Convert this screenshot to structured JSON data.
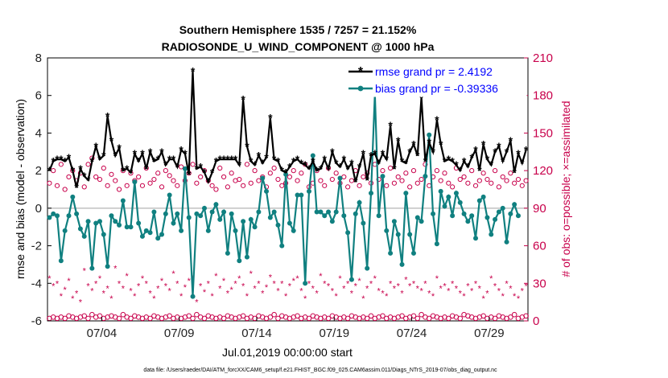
{
  "chart_data": {
    "type": "line",
    "title": "Southern Hemisphere 1535 / 7257 = 21.152%",
    "subtitle": "RADIOSONDE_U_WIND_COMPONENT @ 1000 hPa",
    "xlabel": "Jul.01,2019 00:00:00 start",
    "ylabel": "rmse and bias (model - observation)",
    "y2label": "# of obs: o=possible; ×=assimilated",
    "footnote": "data file: /Users/raeder/DAI/ATM_forcXX/CAM6_setup/f.e21.FHIST_BGC.f09_025.CAM6assim.011/Diags_NTrS_2019-07/obs_diag_output.nc",
    "ylim": [
      -6,
      8
    ],
    "y2lim": [
      0,
      210
    ],
    "xlim": [
      0.5,
      31.5
    ],
    "y_ticks": [
      "-6",
      "-4",
      "-2",
      "0",
      "2",
      "4",
      "6",
      "8"
    ],
    "y2_ticks": [
      "0",
      "30",
      "60",
      "90",
      "120",
      "150",
      "180",
      "210"
    ],
    "x_ticks": [
      {
        "value": 4,
        "label": "07/04"
      },
      {
        "value": 9,
        "label": "07/09"
      },
      {
        "value": 14,
        "label": "07/14"
      },
      {
        "value": 19,
        "label": "07/19"
      },
      {
        "value": 24,
        "label": "07/24"
      },
      {
        "value": 29,
        "label": "07/29"
      }
    ],
    "legend": {
      "location": "top-right",
      "rmse_label": "rmse grand pr = 2.4192",
      "bias_label": "bias grand pr = -0.39336"
    },
    "colors": {
      "rmse": "#000000",
      "bias": "#108080",
      "obs": "#c8004b",
      "zero_line": "#c0c0c0",
      "legend_text": "#0000ff"
    },
    "series": [
      {
        "name": "rmse",
        "x_start": 0.625,
        "x_step": 0.25,
        "values": [
          2.0,
          2.5,
          2.6,
          2.6,
          2.5,
          2.7,
          2.0,
          1.1,
          2.1,
          1.7,
          1.5,
          2.5,
          3.3,
          2.6,
          2.8,
          4.9,
          3.6,
          2.8,
          3.2,
          2.0,
          2.1,
          1.9,
          2.9,
          2.5,
          2.9,
          2.1,
          3.0,
          2.5,
          2.6,
          3.0,
          2.3,
          2.6,
          2.6,
          2.2,
          3.1,
          2.9,
          1.8,
          7.3,
          2.1,
          2.2,
          1.9,
          1.4,
          1.9,
          2.5,
          2.6,
          2.6,
          2.6,
          2.6,
          2.6,
          2.3,
          5.8,
          3.3,
          2.5,
          2.3,
          2.8,
          2.4,
          2.7,
          4.8,
          2.6,
          2.5,
          2.0,
          1.9,
          2.2,
          2.5,
          2.6,
          2.4,
          2.3,
          2.1,
          2.5,
          2.0,
          2.1,
          2.6,
          2.1,
          3.0,
          2.4,
          2.2,
          2.6,
          2.1,
          2.4,
          1.4,
          2.2,
          2.9,
          1.5,
          2.8,
          2.9,
          2.4,
          2.9,
          2.6,
          4.4,
          2.1,
          3.6,
          2.5,
          2.4,
          3.0,
          3.4,
          2.8,
          5.9,
          2.5,
          3.5,
          3.0,
          4.7,
          3.4,
          2.5,
          2.6,
          2.5,
          2.3,
          2.0,
          2.5,
          2.2,
          2.7,
          3.1,
          2.0,
          3.4,
          2.6,
          2.3,
          3.0,
          3.3,
          2.5,
          3.0,
          3.6,
          1.9,
          2.9,
          2.4,
          3.1
        ]
      },
      {
        "name": "bias",
        "x_start": 0.625,
        "x_step": 0.25,
        "values": [
          -0.5,
          -0.3,
          -0.4,
          -2.8,
          -1.2,
          -0.4,
          0.6,
          -0.3,
          -1.1,
          -1.5,
          -0.7,
          -3.2,
          -0.8,
          -0.7,
          -1.4,
          -3.1,
          -0.4,
          -0.7,
          -0.9,
          0.4,
          -1.0,
          -1.0,
          1.4,
          -0.8,
          -1.5,
          -1.2,
          -1.3,
          -0.2,
          -1.6,
          -1.4,
          -0.3,
          0.7,
          -0.8,
          -0.3,
          -1.2,
          2.1,
          -0.5,
          -4.7,
          -0.3,
          -0.4,
          0.0,
          -1.2,
          -0.2,
          0.2,
          -0.6,
          -0.2,
          -2.4,
          -0.3,
          -1.2,
          -2.8,
          -0.7,
          -2.6,
          -0.6,
          -1.0,
          -0.2,
          1.6,
          0.9,
          -0.5,
          -0.2,
          -0.9,
          -2.0,
          1.8,
          -0.8,
          -1.2,
          0.7,
          0.7,
          -4.0,
          0.9,
          2.8,
          -0.2,
          -0.2,
          -0.4,
          -0.2,
          -0.7,
          -0.2,
          1.6,
          -0.4,
          -1.3,
          -3.8,
          -0.3,
          0.3,
          -0.8,
          -3.2,
          0.8,
          6.1,
          -0.4,
          1.7,
          -1.2,
          -2.4,
          -0.7,
          -1.4,
          -3.0,
          0.8,
          -1.4,
          -2.4,
          -0.5,
          -0.7,
          1.7,
          3.9,
          -0.3,
          -1.9,
          0.9,
          0.1,
          0.6,
          -0.4,
          0.8,
          0.3,
          -0.3,
          -0.7,
          -0.4,
          -1.6,
          0.4,
          0.6,
          -0.5,
          -1.4,
          -0.6,
          -0.2,
          0.0,
          -1.8,
          -0.3,
          0.2,
          -0.4
        ]
      },
      {
        "name": "obs possible",
        "axis": "right",
        "x_start": 0.625,
        "x_step": 0.25,
        "values": [
          2,
          3,
          2,
          3,
          2,
          4,
          3,
          2,
          3,
          4,
          2,
          5,
          3,
          4,
          2,
          3,
          4,
          3,
          2,
          5,
          3,
          2,
          4,
          3,
          2,
          3,
          2,
          4,
          3,
          2,
          3,
          4,
          2,
          3,
          2,
          3,
          4,
          2,
          5,
          3,
          2,
          4,
          3,
          2,
          3,
          2,
          4,
          3,
          2,
          3,
          4,
          2,
          3,
          2,
          4,
          3,
          2,
          3,
          5,
          2,
          4,
          3,
          2,
          3,
          4,
          2,
          3,
          2,
          4,
          3,
          2,
          3,
          2,
          4,
          3,
          2,
          3,
          2,
          4,
          3,
          2,
          3,
          2,
          4,
          2,
          3,
          4,
          2,
          3,
          2,
          3,
          4,
          2,
          3,
          4,
          2,
          5,
          3,
          2,
          4,
          3,
          2,
          3,
          2,
          4,
          3,
          2,
          5,
          4,
          3,
          2,
          3,
          4,
          2,
          3,
          2,
          4,
          3,
          2,
          3,
          5,
          2,
          3,
          4
        ],
        "upper_values": [
          110,
          120,
          108,
          125,
          105,
          115,
          120,
          112,
          118,
          107,
          125,
          130,
          115,
          113,
          122,
          108,
          117,
          112,
          105,
          120,
          108,
          118,
          112,
          115,
          108,
          122,
          110,
          113,
          118,
          107,
          120,
          116,
          112,
          108,
          123,
          112,
          118,
          125,
          110,
          115,
          120,
          112,
          108,
          105,
          122,
          115,
          107,
          118,
          112,
          113,
          108,
          125,
          110,
          120,
          112,
          115,
          107,
          118,
          122,
          113,
          108,
          110,
          115,
          120,
          112,
          118,
          125,
          107,
          110,
          120,
          112,
          108,
          122,
          113,
          118,
          110,
          115,
          107,
          112,
          120,
          108,
          115,
          118,
          110,
          125,
          113,
          120,
          108,
          122,
          110,
          115,
          112,
          118,
          107,
          120,
          110,
          113,
          125,
          108,
          115,
          120,
          112,
          118,
          110,
          107,
          122,
          113,
          115,
          110,
          120,
          108,
          112,
          118,
          113,
          110,
          120,
          107,
          115,
          112,
          118,
          110,
          113,
          108,
          112
        ]
      },
      {
        "name": "obs assimilated",
        "axis": "right",
        "x_start": 0.625,
        "x_step": 0.25,
        "values": [
          34,
          28,
          30,
          20,
          25,
          32,
          18,
          22,
          15,
          40,
          28,
          24,
          30,
          34,
          22,
          26,
          18,
          42,
          30,
          26,
          36,
          24,
          20,
          28,
          34,
          30,
          22,
          18,
          26,
          32,
          28,
          24,
          38,
          30,
          20,
          27,
          32,
          34,
          15,
          28,
          23,
          30,
          20,
          36,
          26,
          32,
          22,
          25,
          30,
          34,
          28,
          20,
          38,
          26,
          30,
          22,
          27,
          35,
          30,
          24,
          30,
          20,
          28,
          32,
          34,
          24,
          18,
          30,
          26,
          22,
          36,
          30,
          28,
          24,
          20,
          34,
          26,
          30,
          22,
          28,
          32,
          18,
          26,
          30,
          34,
          24,
          22,
          20,
          30,
          26,
          28,
          22,
          33,
          28,
          30,
          26,
          24,
          30,
          22,
          20,
          34,
          26,
          28,
          24,
          30,
          26,
          22,
          20,
          28,
          24,
          30,
          26,
          18,
          22,
          34,
          28,
          24,
          20,
          30,
          26,
          20,
          18,
          24,
          28
        ]
      }
    ]
  }
}
